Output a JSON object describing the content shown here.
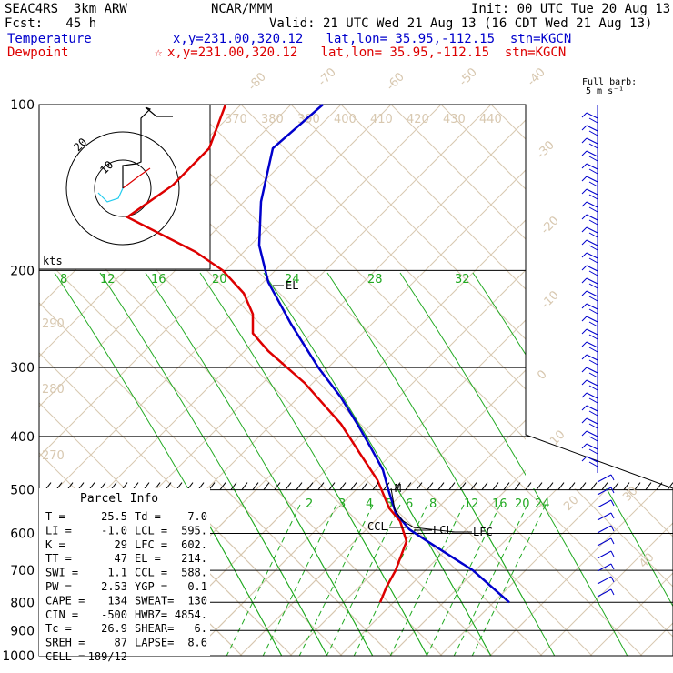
{
  "header": {
    "model_line": "SEAC4RS  3km ARW",
    "org": "NCAR/MMM",
    "init": "Init: 00 UTC Tue 20 Aug 13",
    "fcst": "Fcst:   45 h",
    "valid": "Valid: 21 UTC Wed 21 Aug 13 (16 CDT Wed 21 Aug 13)",
    "temp_label": "Temperature",
    "temp_loc": "x,y=231.00,320.12   lat,lon= 35.95,-112.15  stn=KGCN",
    "dew_label": "Dewpoint",
    "dew_loc": "x,y=231.00,320.12   lat,lon= 35.95,-112.15  stn=KGCN",
    "dew_star": "☆"
  },
  "barb_key": {
    "line1": "Full barb:",
    "line2": "5 m s⁻¹"
  },
  "hodograph": {
    "units": "kts",
    "ring_inner": "10",
    "ring_outer": "20"
  },
  "pressure_labels": [
    "100",
    "200",
    "300",
    "400",
    "500",
    "600",
    "700",
    "800",
    "900",
    "1000"
  ],
  "theta_labels": [
    "370",
    "380",
    "390",
    "400",
    "410",
    "420",
    "430",
    "440",
    "290",
    "280",
    "270"
  ],
  "temp_labels": [
    "-80",
    "-70",
    "-60",
    "-50",
    "-40",
    "-30",
    "-20",
    "-10",
    "0",
    "10",
    "20",
    "30",
    "40"
  ],
  "mix_upper_labels": [
    "8",
    "12",
    "16",
    "20",
    "24",
    "28",
    "32"
  ],
  "mix_lower_labels": [
    "2",
    "3",
    "4",
    "5",
    "6",
    "8",
    "12",
    "16",
    "20",
    "24"
  ],
  "markers": {
    "el": "EL",
    "ccl": "CCL",
    "lcl": "LCL",
    "lfc": "LFC",
    "m": "M"
  },
  "parcel_info": {
    "title": "Parcel Info",
    "rows": [
      [
        "T  =",
        "25.5",
        "Td =",
        "7.0"
      ],
      [
        "LI =",
        "-1.0",
        "LCL =",
        "595."
      ],
      [
        "K  =",
        "29",
        "LFC =",
        "602."
      ],
      [
        "TT =",
        "47",
        "EL  =",
        "214."
      ],
      [
        "SWI =",
        "1.1",
        "CCL =",
        "588."
      ],
      [
        "PW =",
        "2.53",
        "YGP =",
        "0.1"
      ],
      [
        "CAPE =",
        "134",
        "SWEAT=",
        "130"
      ],
      [
        "CIN =",
        "-500",
        "HWBZ=",
        "4854."
      ],
      [
        "Tc =",
        "26.9",
        "SHEAR=",
        "6."
      ],
      [
        "SREH =",
        "87",
        "LAPSE=",
        "8.6"
      ],
      [
        "CELL =",
        "189/12",
        "",
        ""
      ]
    ]
  },
  "colors": {
    "temperature": "#0000cc",
    "dewpoint": "#dd0000",
    "isotherm": "#d8c8b0",
    "mixing_ratio": "#22aa22",
    "isobar": "#000000"
  },
  "chart_data": {
    "type": "line",
    "subtype": "skew-T log-p sounding",
    "yscale": "log",
    "ylim": [
      1000,
      100
    ],
    "ylabel": "",
    "xlabel": "",
    "series": [
      {
        "name": "Temperature",
        "color": "#0000cc",
        "points": [
          {
            "p": 800,
            "x_skewed": 560
          },
          {
            "p": 700,
            "x_skewed": 520
          },
          {
            "p": 620,
            "x_skewed": 470
          },
          {
            "p": 590,
            "x_skewed": 450
          },
          {
            "p": 550,
            "x_skewed": 435
          },
          {
            "p": 500,
            "x_skewed": 427
          },
          {
            "p": 460,
            "x_skewed": 421
          },
          {
            "p": 420,
            "x_skewed": 408
          },
          {
            "p": 380,
            "x_skewed": 393
          },
          {
            "p": 340,
            "x_skewed": 375
          },
          {
            "p": 300,
            "x_skewed": 350
          },
          {
            "p": 250,
            "x_skewed": 320
          },
          {
            "p": 210,
            "x_skewed": 295
          },
          {
            "p": 180,
            "x_skewed": 285
          },
          {
            "p": 150,
            "x_skewed": 287
          },
          {
            "p": 120,
            "x_skewed": 300
          },
          {
            "p": 100,
            "x_skewed": 355
          }
        ]
      },
      {
        "name": "Dewpoint",
        "color": "#dd0000",
        "points": [
          {
            "p": 800,
            "x_skewed": 418
          },
          {
            "p": 750,
            "x_skewed": 425
          },
          {
            "p": 700,
            "x_skewed": 435
          },
          {
            "p": 620,
            "x_skewed": 447
          },
          {
            "p": 570,
            "x_skewed": 440
          },
          {
            "p": 540,
            "x_skewed": 428
          },
          {
            "p": 480,
            "x_skewed": 415
          },
          {
            "p": 430,
            "x_skewed": 396
          },
          {
            "p": 380,
            "x_skewed": 375
          },
          {
            "p": 320,
            "x_skewed": 335
          },
          {
            "p": 280,
            "x_skewed": 295
          },
          {
            "p": 260,
            "x_skewed": 278
          },
          {
            "p": 240,
            "x_skewed": 278
          },
          {
            "p": 220,
            "x_skewed": 268
          },
          {
            "p": 200,
            "x_skewed": 245
          },
          {
            "p": 185,
            "x_skewed": 215
          },
          {
            "p": 160,
            "x_skewed": 140
          },
          {
            "p": 140,
            "x_skewed": 190
          },
          {
            "p": 120,
            "x_skewed": 230
          },
          {
            "p": 100,
            "x_skewed": 248
          }
        ]
      }
    ]
  }
}
